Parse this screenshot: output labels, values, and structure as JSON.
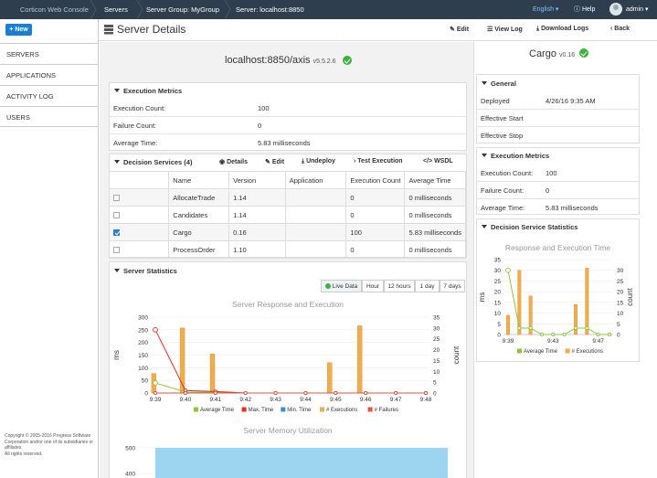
{
  "topbar": {
    "breadcrumbs": [
      "Corticon Web Console",
      "Servers",
      "Server Group: MyGroup",
      "Server: localhost:8850"
    ],
    "language": "English",
    "help": "Help",
    "user": "admin"
  },
  "sidebar": {
    "new_label": "New",
    "items": [
      "SERVERS",
      "APPLICATIONS",
      "ACTIVITY LOG",
      "USERS"
    ],
    "copyright": [
      "Copyright © 2005-2016 Progress Software",
      "Corporation and/or one of its subsidiaries or affiliates.",
      "All rights reserved."
    ]
  },
  "header": {
    "title": "Server Details",
    "buttons": [
      "Edit",
      "View Log",
      "Download Logs",
      "Back"
    ]
  },
  "server": {
    "name": "localhost:8850/axis",
    "version": "v5.5.2.6"
  },
  "execution_metrics": {
    "title": "Execution Metrics",
    "rows": [
      {
        "label": "Execution Count:",
        "value": "100"
      },
      {
        "label": "Failure Count:",
        "value": "0"
      },
      {
        "label": "Average Time:",
        "value": "5.83 milliseconds"
      }
    ]
  },
  "decision_services": {
    "title": "Decision Services (4)",
    "actions": [
      "Details",
      "Edit",
      "Undeploy",
      "Test Execution",
      "WSDL"
    ],
    "columns": [
      "",
      "Name",
      "Version",
      "Application",
      "Execution Count",
      "Average Time"
    ],
    "rows": [
      {
        "checked": false,
        "name": "AllocateTrade",
        "version": "1.14",
        "application": "",
        "count": "0",
        "avg": "0 milliseconds"
      },
      {
        "checked": false,
        "name": "Candidates",
        "version": "1.14",
        "application": "",
        "count": "0",
        "avg": "0 milliseconds"
      },
      {
        "checked": true,
        "name": "Cargo",
        "version": "0.16",
        "application": "",
        "count": "100",
        "avg": "5.83 milliseconds"
      },
      {
        "checked": false,
        "name": "ProcessOrder",
        "version": "1.10",
        "application": "",
        "count": "0",
        "avg": "0 milliseconds"
      }
    ]
  },
  "server_statistics": {
    "title": "Server Statistics",
    "ranges": [
      "Live Data",
      "Hour",
      "12 hours",
      "1 day",
      "7 days"
    ],
    "active_range": "Live Data"
  },
  "right_panel": {
    "title": "Cargo",
    "version": "v0.16",
    "general": {
      "title": "General",
      "rows": [
        {
          "label": "Deployed",
          "value": "4/26/16 9:35 AM"
        },
        {
          "label": "Effective Start",
          "value": ""
        },
        {
          "label": "Effective Stop",
          "value": ""
        }
      ]
    },
    "execution_metrics": {
      "title": "Execution Metrics",
      "rows": [
        {
          "label": "Execution Count:",
          "value": "100"
        },
        {
          "label": "Failure Count:",
          "value": "0"
        },
        {
          "label": "Average Time:",
          "value": "5.83 milliseconds"
        }
      ]
    },
    "stats_title": "Decision Service Statistics"
  },
  "colors": {
    "topbar": "#2e3e4e",
    "accent": "#1a7fd4",
    "ok": "#3cb43c",
    "bar": "#f0ad4e",
    "avg_line": "#8cc63f",
    "max_line": "#e03020",
    "min_line": "#3b8bd9",
    "memory": "#9dd4f0"
  },
  "chart_data": [
    {
      "type": "bar",
      "title": "Server Response and Execution",
      "categories": [
        "9:39",
        "9:40",
        "9:41",
        "9:42",
        "9:43",
        "9:44",
        "9:45",
        "9:46",
        "9:47",
        "9:48"
      ],
      "ylabel": "ms",
      "y2label": "count",
      "ylim": [
        0,
        300
      ],
      "y2lim": [
        0,
        35
      ],
      "yticks": [
        0,
        50,
        100,
        150,
        200,
        250,
        300
      ],
      "y2ticks": [
        0,
        5,
        10,
        15,
        20,
        25,
        30,
        35
      ],
      "series": [
        {
          "name": "# Executions",
          "kind": "bar",
          "axis": "y2",
          "x": [
            -0.05,
            0.9,
            1.9,
            5.8,
            6.8
          ],
          "values": [
            9,
            30,
            18,
            14,
            31
          ]
        },
        {
          "name": "Average Time",
          "kind": "line",
          "axis": "y",
          "x": [
            0,
            1,
            2,
            3,
            4,
            5,
            6,
            7,
            8,
            9
          ],
          "values": [
            40,
            4,
            3,
            0,
            0,
            0,
            0,
            0,
            0,
            0
          ]
        },
        {
          "name": "Max. Time",
          "kind": "line",
          "axis": "y",
          "x": [
            0,
            1,
            2,
            3,
            4,
            5,
            6,
            7,
            8,
            9
          ],
          "values": [
            250,
            10,
            6,
            0,
            0,
            0,
            0,
            0,
            0,
            0
          ]
        },
        {
          "name": "Min. Time",
          "kind": "line",
          "axis": "y",
          "x": [
            0,
            1,
            2,
            3,
            4,
            5,
            6,
            7,
            8,
            9
          ],
          "values": [
            0,
            0,
            0,
            0,
            0,
            0,
            0,
            0,
            0,
            0
          ]
        },
        {
          "name": "# Failures",
          "kind": "line",
          "axis": "y2",
          "x": [
            0,
            1,
            2,
            3,
            4,
            5,
            6,
            7,
            8,
            9
          ],
          "values": [
            0,
            0,
            0,
            0,
            0,
            0,
            0,
            0,
            0,
            0
          ]
        }
      ],
      "legend": "bottom"
    },
    {
      "type": "area",
      "title": "Server Memory Utilization",
      "yticks": [
        400,
        500
      ],
      "ylim": [
        380,
        520
      ],
      "values": [
        500,
        500
      ]
    },
    {
      "type": "bar",
      "title": "Response and Execution Time",
      "categories": [
        "9:39",
        "9:43",
        "9:47"
      ],
      "category_positions": [
        0,
        4,
        8
      ],
      "ylabel": "ms",
      "y2label": "count",
      "ylim": [
        0,
        35
      ],
      "y2lim": [
        0,
        35
      ],
      "yticks": [
        0,
        5,
        10,
        15,
        20,
        25,
        30,
        35
      ],
      "y2ticks": [
        0,
        5,
        10,
        15,
        20,
        25,
        30
      ],
      "series": [
        {
          "name": "# Executions",
          "kind": "bar",
          "axis": "y2",
          "x": [
            0,
            1,
            2,
            6,
            7
          ],
          "values": [
            9,
            30,
            18,
            14,
            31
          ]
        },
        {
          "name": "Average Time",
          "kind": "line",
          "axis": "y",
          "x": [
            0,
            1,
            2,
            3,
            4,
            5,
            6,
            7,
            8,
            9
          ],
          "values": [
            30,
            3,
            3,
            0,
            0,
            0,
            3,
            3,
            0,
            0
          ]
        }
      ],
      "legend": "bottom"
    }
  ]
}
